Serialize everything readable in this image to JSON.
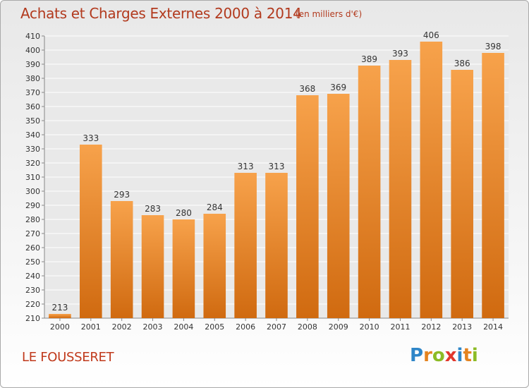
{
  "header": {
    "title": "Achats et Charges Externes 2000 à 2014",
    "unit": "(en milliers d'€)"
  },
  "footer": {
    "place": "LE FOUSSERET",
    "logo": "Proxiti"
  },
  "colors": {
    "bar_light": "#f7a24b",
    "bar_dark": "#d06a10",
    "title": "#b23a1e",
    "place": "#c0391b",
    "grid": "#ffffff"
  },
  "logo_letters": [
    {
      "ch": "P",
      "color": "#2e86c8"
    },
    {
      "ch": "r",
      "color": "#e4831f"
    },
    {
      "ch": "o",
      "color": "#8cbb25"
    },
    {
      "ch": "x",
      "color": "#e2372c"
    },
    {
      "ch": "i",
      "color": "#2e86c8"
    },
    {
      "ch": "t",
      "color": "#e4831f"
    },
    {
      "ch": "i",
      "color": "#8cbb25"
    }
  ],
  "chart_data": {
    "type": "bar",
    "title": "Achats et Charges Externes 2000 à 2014",
    "subtitle": "(en milliers d'€)",
    "xlabel": "",
    "ylabel": "",
    "categories": [
      "2000",
      "2001",
      "2002",
      "2003",
      "2004",
      "2005",
      "2006",
      "2007",
      "2008",
      "2009",
      "2010",
      "2011",
      "2012",
      "2013",
      "2014"
    ],
    "values": [
      213,
      333,
      293,
      283,
      280,
      284,
      313,
      313,
      368,
      369,
      389,
      393,
      406,
      386,
      398
    ],
    "data_labels": [
      "213",
      "333",
      "293",
      "283",
      "280",
      "284",
      "313",
      "313",
      "368",
      "369",
      "389",
      "393",
      "406",
      "386",
      "398"
    ],
    "ylim": [
      210,
      410
    ],
    "yticks": [
      210,
      220,
      230,
      240,
      250,
      260,
      270,
      280,
      290,
      300,
      310,
      320,
      330,
      340,
      350,
      360,
      370,
      380,
      390,
      400,
      410
    ],
    "ytick_labels": [
      "210",
      "220",
      "230",
      "240",
      "250",
      "260",
      "270",
      "280",
      "290",
      "300",
      "310",
      "320",
      "330",
      "340",
      "350",
      "360",
      "370",
      "380",
      "390",
      "400",
      "410"
    ],
    "grid": true,
    "legend": "none"
  }
}
